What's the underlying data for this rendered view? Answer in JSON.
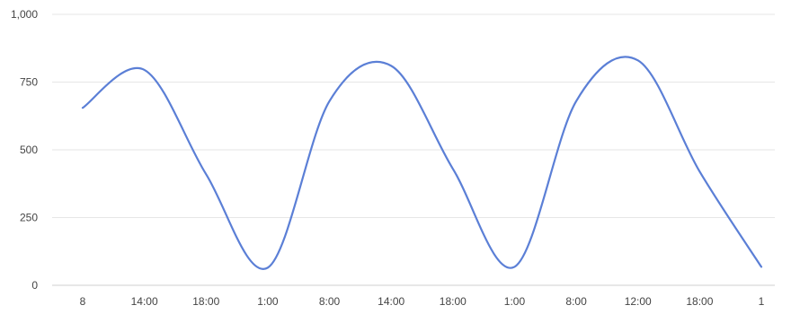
{
  "chart_data": {
    "type": "line",
    "categories": [
      "8",
      "14:00",
      "18:00",
      "1:00",
      "8:00",
      "14:00",
      "18:00",
      "1:00",
      "8:00",
      "12:00",
      "18:00",
      "1"
    ],
    "series": [
      {
        "values": [
          655,
          795,
          410,
          65,
          680,
          810,
          430,
          68,
          680,
          830,
          420,
          68
        ]
      }
    ],
    "y_ticks": [
      "0",
      "250",
      "500",
      "750",
      "1,000"
    ],
    "y_tick_values": [
      0,
      250,
      500,
      750,
      1000
    ],
    "ylim": [
      0,
      1000
    ],
    "grid": true,
    "legend": "none",
    "title": "",
    "xlabel": "",
    "ylabel": "",
    "line_color": "#5b7fd6",
    "grid_color": "#e6e6e6"
  }
}
